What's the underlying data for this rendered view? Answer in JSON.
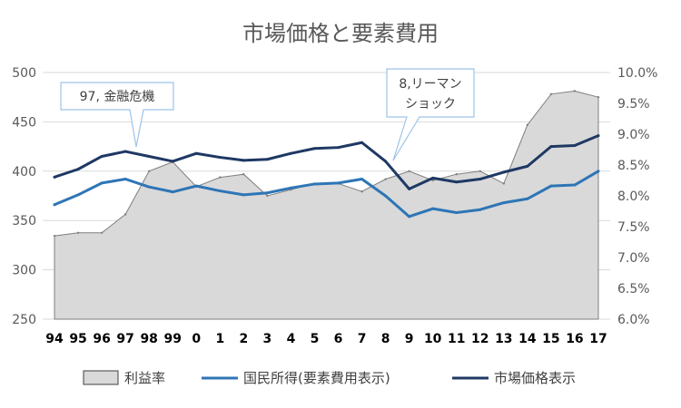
{
  "chart_data": {
    "type": "line",
    "title": "市場価格と要素費用",
    "categories": [
      "94",
      "95",
      "96",
      "97",
      "98",
      "99",
      "0",
      "1",
      "2",
      "3",
      "4",
      "5",
      "6",
      "7",
      "8",
      "9",
      "10",
      "11",
      "12",
      "13",
      "14",
      "15",
      "16",
      "17"
    ],
    "y_left": {
      "ticks": [
        250,
        300,
        350,
        400,
        450,
        500
      ],
      "range": [
        250,
        500
      ]
    },
    "y_right": {
      "ticks": [
        "6.0%",
        "6.5%",
        "7.0%",
        "7.5%",
        "8.0%",
        "8.5%",
        "9.0%",
        "9.5%",
        "10.0%"
      ],
      "range": [
        6.0,
        10.0
      ],
      "unit": "%"
    },
    "grid": true,
    "legend_position": "bottom",
    "series": [
      {
        "name": "利益率",
        "type": "area",
        "axis": "right",
        "color": "#d9d9d9",
        "values": [
          7.35,
          7.4,
          7.4,
          7.7,
          8.4,
          8.55,
          8.15,
          8.3,
          8.35,
          8.0,
          8.1,
          8.2,
          8.2,
          8.07,
          8.27,
          8.4,
          8.25,
          8.35,
          8.4,
          8.2,
          9.15,
          9.65,
          9.7,
          9.6
        ]
      },
      {
        "name": "国民所得(要素費用表示)",
        "type": "line",
        "axis": "left",
        "color": "#2e75b6",
        "values": [
          366,
          376,
          388,
          392,
          384,
          379,
          385,
          380,
          376,
          378,
          383,
          387,
          388,
          392,
          375,
          354,
          362,
          358,
          361,
          368,
          372,
          385,
          386,
          400
        ]
      },
      {
        "name": "市場価格表示",
        "type": "line",
        "axis": "left",
        "color": "#1f3864",
        "values": [
          394,
          402,
          415,
          420,
          415,
          410,
          418,
          414,
          411,
          412,
          418,
          423,
          424,
          429,
          410,
          382,
          393,
          389,
          392,
          399,
          405,
          425,
          426,
          436
        ]
      }
    ],
    "annotations": [
      {
        "text": "97, 金融危機",
        "at": "97"
      },
      {
        "text_lines": [
          "8,リーマン",
          "ショック"
        ],
        "at": "8"
      }
    ]
  }
}
